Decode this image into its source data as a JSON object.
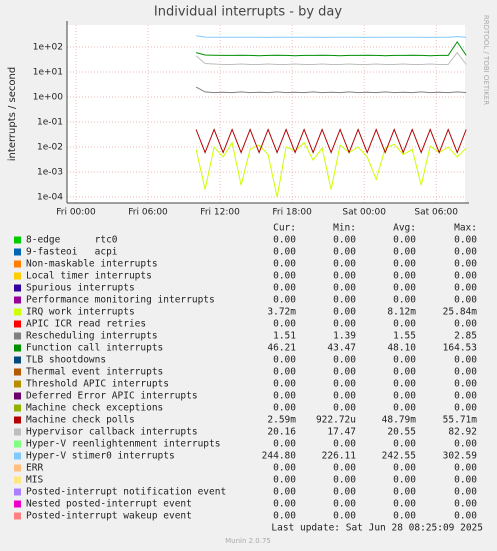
{
  "chart_data": {
    "type": "line",
    "title": "Individual interrupts - by day",
    "y_label": "interrupts / second",
    "watermark": "RRDTOOL / TOBI OETIKER",
    "log_y": true,
    "grid": true,
    "ylim": [
      5.75e-05,
      760
    ],
    "yticks": [
      {
        "value": 100,
        "label": "1e+02"
      },
      {
        "value": 10,
        "label": "1e+01"
      },
      {
        "value": 1,
        "label": "1e+00"
      },
      {
        "value": 0.1,
        "label": "1e-01"
      },
      {
        "value": 0.01,
        "label": "1e-02"
      },
      {
        "value": 0.001,
        "label": "1e-03"
      },
      {
        "value": 0.0001,
        "label": "1e-04"
      }
    ],
    "xlim": [
      -0.75,
      32.4
    ],
    "xticks": [
      {
        "value": 0,
        "label": "Fri 00:00"
      },
      {
        "value": 6,
        "label": "Fri 06:00"
      },
      {
        "value": 12,
        "label": "Fri 12:00"
      },
      {
        "value": 18,
        "label": "Fri 18:00"
      },
      {
        "value": 24,
        "label": "Sat 00:00"
      },
      {
        "value": 30,
        "label": "Sat 06:00"
      }
    ],
    "x": [
      10,
      10.75,
      11.5,
      12.25,
      13,
      13.75,
      14.5,
      15.25,
      16,
      16.75,
      17.5,
      18.25,
      19,
      19.75,
      20.5,
      21.25,
      22,
      22.75,
      23.5,
      24.25,
      25,
      25.75,
      26.5,
      27.25,
      28,
      28.75,
      29.5,
      30.25,
      31,
      31.75,
      32.5
    ],
    "columns": [
      "Cur:",
      "Min:",
      "Avg:",
      "Max:"
    ],
    "series": [
      {
        "name": "8-edge      rtc0",
        "color": "#00cc00",
        "cur": "0.00",
        "min": "0.00",
        "avg": "0.00",
        "max": "0.00"
      },
      {
        "name": "9-fasteoi   acpi",
        "color": "#0066b3",
        "cur": "0.00",
        "min": "0.00",
        "avg": "0.00",
        "max": "0.00"
      },
      {
        "name": "Non-maskable interrupts",
        "color": "#ff8000",
        "cur": "0.00",
        "min": "0.00",
        "avg": "0.00",
        "max": "0.00"
      },
      {
        "name": "Local timer interrupts",
        "color": "#ffcc00",
        "cur": "0.00",
        "min": "0.00",
        "avg": "0.00",
        "max": "0.00"
      },
      {
        "name": "Spurious interrupts",
        "color": "#330099",
        "cur": "0.00",
        "min": "0.00",
        "avg": "0.00",
        "max": "0.00"
      },
      {
        "name": "Performance monitoring interrupts",
        "color": "#990099",
        "cur": "0.00",
        "min": "0.00",
        "avg": "0.00",
        "max": "0.00"
      },
      {
        "name": "IRQ work interrupts",
        "color": "#ccff00",
        "cur": "3.72m",
        "min": "0.00",
        "avg": "8.12m",
        "max": "25.84m",
        "values": [
          0.008,
          0.0002,
          0.01,
          0.004,
          0.015,
          0.0003,
          0.008,
          0.012,
          0.005,
          0.0001,
          0.01,
          0.007,
          0.015,
          0.003,
          0.009,
          0.0002,
          0.012,
          0.006,
          0.01,
          0.004,
          0.0005,
          0.009,
          0.013,
          0.005,
          0.008,
          0.0003,
          0.011,
          0.006,
          0.01,
          0.004,
          0.009
        ]
      },
      {
        "name": "APIC ICR read retries",
        "color": "#ff0000",
        "cur": "0.00",
        "min": "0.00",
        "avg": "0.00",
        "max": "0.00"
      },
      {
        "name": "Rescheduling interrupts",
        "color": "#808080",
        "cur": "1.51",
        "min": "1.39",
        "avg": "1.55",
        "max": "2.85",
        "values": [
          2.5,
          1.6,
          1.5,
          1.55,
          1.5,
          1.6,
          1.5,
          1.55,
          1.5,
          1.6,
          1.5,
          1.55,
          1.5,
          1.6,
          1.5,
          1.55,
          1.5,
          1.6,
          1.5,
          1.55,
          1.5,
          1.6,
          1.5,
          1.55,
          1.5,
          1.6,
          1.5,
          1.55,
          1.5,
          1.6,
          1.5
        ]
      },
      {
        "name": "Function call interrupts",
        "color": "#008f00",
        "cur": "46.21",
        "min": "43.47",
        "avg": "48.10",
        "max": "164.53",
        "values": [
          60,
          48,
          47,
          46,
          46,
          47,
          46,
          45,
          46,
          47,
          46,
          45,
          46,
          46,
          47,
          46,
          45,
          46,
          46,
          47,
          46,
          45,
          46,
          46,
          47,
          46,
          45,
          46,
          46,
          160,
          46
        ]
      },
      {
        "name": "TLB shootdowns",
        "color": "#00487d",
        "cur": "0.00",
        "min": "0.00",
        "avg": "0.00",
        "max": "0.00"
      },
      {
        "name": "Thermal event interrupts",
        "color": "#b35a00",
        "cur": "0.00",
        "min": "0.00",
        "avg": "0.00",
        "max": "0.00"
      },
      {
        "name": "Threshold APIC interrupts",
        "color": "#b38f00",
        "cur": "0.00",
        "min": "0.00",
        "avg": "0.00",
        "max": "0.00"
      },
      {
        "name": "Deferred Error APIC interrupts",
        "color": "#6b006b",
        "cur": "0.00",
        "min": "0.00",
        "avg": "0.00",
        "max": "0.00"
      },
      {
        "name": "Machine check exceptions",
        "color": "#8fb300",
        "cur": "0.00",
        "min": "0.00",
        "avg": "0.00",
        "max": "0.00"
      },
      {
        "name": "Machine check polls",
        "color": "#b30000",
        "cur": "2.59m",
        "min": "922.72u",
        "avg": "48.79m",
        "max": "55.71m",
        "values": [
          0.05,
          0.006,
          0.05,
          0.006,
          0.05,
          0.006,
          0.05,
          0.006,
          0.05,
          0.006,
          0.05,
          0.006,
          0.05,
          0.006,
          0.05,
          0.006,
          0.05,
          0.006,
          0.05,
          0.006,
          0.05,
          0.006,
          0.05,
          0.006,
          0.05,
          0.006,
          0.05,
          0.006,
          0.05,
          0.006,
          0.05
        ]
      },
      {
        "name": "Hypervisor callback interrupts",
        "color": "#bebebe",
        "cur": "20.16",
        "min": "17.47",
        "avg": "20.55",
        "max": "82.92",
        "values": [
          45,
          22,
          21,
          20,
          20,
          21,
          20,
          20,
          21,
          20,
          20,
          21,
          20,
          20,
          21,
          20,
          20,
          21,
          20,
          20,
          21,
          20,
          20,
          21,
          20,
          20,
          21,
          20,
          20,
          60,
          20
        ]
      },
      {
        "name": "Hyper-V reenlightenment interrupts",
        "color": "#80ff80",
        "cur": "0.00",
        "min": "0.00",
        "avg": "0.00",
        "max": "0.00"
      },
      {
        "name": "Hyper-V stimer0 interrupts",
        "color": "#80c9ff",
        "cur": "244.80",
        "min": "226.11",
        "avg": "242.55",
        "max": "302.59",
        "values": [
          280,
          250,
          245,
          248,
          246,
          244,
          247,
          245,
          243,
          246,
          244,
          245,
          246,
          244,
          243,
          245,
          246,
          244,
          245,
          243,
          246,
          244,
          245,
          246,
          244,
          245,
          243,
          246,
          244,
          260,
          245
        ]
      },
      {
        "name": "ERR",
        "color": "#ffc080",
        "cur": "0.00",
        "min": "0.00",
        "avg": "0.00",
        "max": "0.00"
      },
      {
        "name": "MIS",
        "color": "#ffe680",
        "cur": "0.00",
        "min": "0.00",
        "avg": "0.00",
        "max": "0.00"
      },
      {
        "name": "Posted-interrupt notification event",
        "color": "#aa80ff",
        "cur": "0.00",
        "min": "0.00",
        "avg": "0.00",
        "max": "0.00"
      },
      {
        "name": "Nested posted-interrupt event",
        "color": "#ee00cc",
        "cur": "0.00",
        "min": "0.00",
        "avg": "0.00",
        "max": "0.00"
      },
      {
        "name": "Posted-interrupt wakeup event",
        "color": "#ff8080",
        "cur": "0.00",
        "min": "0.00",
        "avg": "0.00",
        "max": "0.00"
      }
    ],
    "last_update": "Last update: Sat Jun 28 08:25:09 2025",
    "footer": "Munin 2.0.75"
  }
}
